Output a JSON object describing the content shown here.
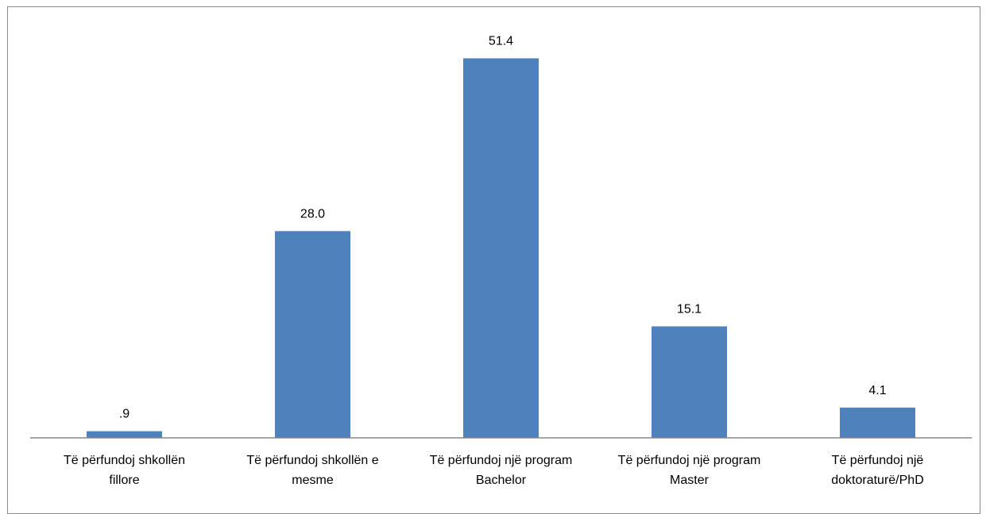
{
  "chart_data": {
    "type": "bar",
    "categories": [
      "Të përfundoj shkollën fillore",
      "Të përfundoj shkollën e mesme",
      "Të përfundoj një program Bachelor",
      "Të përfundoj një program Master",
      "Të përfundoj një doktoraturë/PhD"
    ],
    "category_lines": [
      [
        "Të përfundoj shkollën",
        "fillore"
      ],
      [
        "Të përfundoj shkollën e",
        "mesme"
      ],
      [
        "Të përfundoj një program",
        "Bachelor"
      ],
      [
        "Të përfundoj një program",
        "Master"
      ],
      [
        "Të përfundoj një",
        "doktoraturë/PhD"
      ]
    ],
    "values": [
      0.9,
      28.0,
      51.4,
      15.1,
      4.1
    ],
    "data_labels": [
      ".9",
      "28.0",
      "51.4",
      "15.1",
      "4.1"
    ],
    "ylim": [
      0,
      55
    ],
    "grid": false,
    "legend": "none",
    "bar_color": "#4f81bd",
    "axis_color": "#868686",
    "title": "",
    "xlabel": "",
    "ylabel": ""
  }
}
